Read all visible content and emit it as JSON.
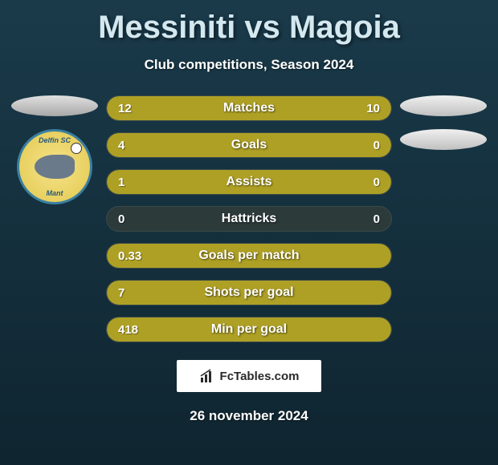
{
  "title": "Messiniti vs Magoia",
  "subtitle": "Club competitions, Season 2024",
  "date": "26 november 2024",
  "footer_brand": "FcTables.com",
  "left_logo": {
    "text_top": "Delfin SC",
    "text_bottom": "Mant"
  },
  "colors": {
    "bar_fill": "#aea025",
    "bar_track": "#2d3a3a",
    "background_top": "#1a3a4a",
    "background_bottom": "#0f2530",
    "title_color": "#d4e8f0",
    "text_color": "#ffffff"
  },
  "stats": [
    {
      "label": "Matches",
      "left_value": "12",
      "right_value": "10",
      "left_pct": 54.5,
      "right_pct": 45.5,
      "type": "split"
    },
    {
      "label": "Goals",
      "left_value": "4",
      "right_value": "0",
      "left_pct": 78,
      "right_pct": 22,
      "type": "split"
    },
    {
      "label": "Assists",
      "left_value": "1",
      "right_value": "0",
      "left_pct": 78,
      "right_pct": 22,
      "type": "split"
    },
    {
      "label": "Hattricks",
      "left_value": "0",
      "right_value": "0",
      "left_pct": 0,
      "right_pct": 0,
      "type": "empty"
    },
    {
      "label": "Goals per match",
      "left_value": "0.33",
      "right_value": "",
      "left_pct": 100,
      "right_pct": 0,
      "type": "full"
    },
    {
      "label": "Shots per goal",
      "left_value": "7",
      "right_value": "",
      "left_pct": 100,
      "right_pct": 0,
      "type": "full"
    },
    {
      "label": "Min per goal",
      "left_value": "418",
      "right_value": "",
      "left_pct": 100,
      "right_pct": 0,
      "type": "full"
    }
  ]
}
